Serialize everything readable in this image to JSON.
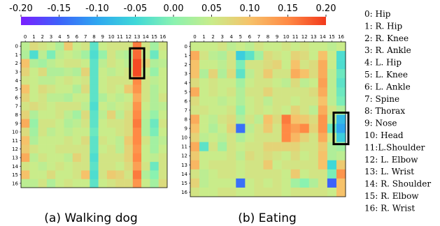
{
  "colormap": [
    "#7a1fff",
    "#3d62fa",
    "#2ea7f0",
    "#3fd8d8",
    "#8af2b0",
    "#c9ec8a",
    "#f6c26a",
    "#ff8a45",
    "#f23a1c"
  ],
  "highlight_color": "#000000",
  "chart_data": [
    {
      "type": "heatmap",
      "caption": "(a) Walking dog",
      "x": [
        "0",
        "1",
        "2",
        "3",
        "4",
        "5",
        "6",
        "7",
        "8",
        "9",
        "10",
        "11",
        "12",
        "13",
        "14",
        "15",
        "16"
      ],
      "y": [
        "0",
        "1",
        "2",
        "3",
        "4",
        "5",
        "6",
        "7",
        "8",
        "9",
        "10",
        "11",
        "12",
        "13",
        "14",
        "15",
        "16"
      ],
      "vmin": -0.2,
      "vmax": 0.2,
      "highlight": {
        "col": 13,
        "row_start": 1,
        "row_end": 3
      },
      "values": [
        [
          0.04,
          0.07,
          0.06,
          0.05,
          0.03,
          0.09,
          0.05,
          0.06,
          -0.03,
          0.05,
          0.06,
          0.06,
          0.06,
          0.16,
          0.06,
          0.02,
          0.06
        ],
        [
          0.03,
          -0.04,
          0.04,
          -0.01,
          0.04,
          0.05,
          0.04,
          0.02,
          -0.04,
          0.01,
          0.06,
          0.04,
          0.03,
          0.17,
          0.05,
          -0.02,
          0.05
        ],
        [
          0.1,
          0.03,
          0.02,
          0.04,
          0.05,
          0.06,
          0.06,
          0.05,
          -0.03,
          0.04,
          0.06,
          0.05,
          0.04,
          0.19,
          0.08,
          0.03,
          0.04
        ],
        [
          0.08,
          0.05,
          0.07,
          0.03,
          0.03,
          0.04,
          0.03,
          0.08,
          -0.03,
          0.05,
          0.04,
          0.05,
          0.06,
          0.19,
          0.05,
          0.01,
          0.05
        ],
        [
          0.06,
          0.05,
          0.04,
          0.04,
          0.05,
          0.06,
          0.05,
          0.06,
          -0.03,
          0.05,
          0.06,
          0.06,
          0.06,
          0.15,
          0.06,
          0.04,
          0.05
        ],
        [
          0.1,
          0.05,
          0.07,
          0.06,
          0.05,
          0.05,
          0.03,
          0.07,
          -0.03,
          0.05,
          0.06,
          0.05,
          0.09,
          0.14,
          0.06,
          0.03,
          0.05
        ],
        [
          0.08,
          0.05,
          0.06,
          0.04,
          0.04,
          0.03,
          0.05,
          0.05,
          -0.03,
          0.03,
          0.05,
          0.04,
          0.05,
          0.12,
          0.06,
          0.03,
          0.06
        ],
        [
          0.06,
          0.07,
          0.06,
          0.05,
          0.06,
          0.06,
          0.06,
          0.04,
          -0.04,
          0.05,
          0.04,
          0.05,
          0.06,
          0.14,
          0.05,
          0.03,
          0.04
        ],
        [
          0.08,
          0.03,
          0.05,
          0.05,
          0.06,
          0.04,
          0.02,
          0.07,
          -0.03,
          0.04,
          0.08,
          0.04,
          0.07,
          0.15,
          0.04,
          0.01,
          0.05
        ],
        [
          0.12,
          0.01,
          0.06,
          0.06,
          0.05,
          0.03,
          0.04,
          0.06,
          -0.03,
          0.05,
          0.06,
          0.06,
          0.07,
          0.16,
          0.03,
          -0.02,
          0.06
        ],
        [
          0.07,
          0.02,
          0.06,
          0.04,
          0.05,
          0.04,
          0.05,
          0.05,
          -0.02,
          0.05,
          0.05,
          0.06,
          0.07,
          0.15,
          0.03,
          -0.01,
          0.05
        ],
        [
          0.1,
          0.03,
          0.05,
          0.05,
          0.05,
          0.06,
          0.05,
          0.07,
          -0.03,
          0.06,
          0.05,
          0.04,
          0.09,
          0.15,
          0.06,
          0.02,
          0.04
        ],
        [
          0.09,
          0.06,
          0.05,
          0.05,
          0.06,
          0.06,
          0.06,
          0.06,
          -0.03,
          0.05,
          0.06,
          0.04,
          0.08,
          0.14,
          0.05,
          0.02,
          0.05
        ],
        [
          0.12,
          0.04,
          0.06,
          0.05,
          0.05,
          0.04,
          0.08,
          0.06,
          -0.04,
          0.06,
          0.06,
          0.06,
          0.08,
          0.15,
          0.05,
          0.04,
          0.06
        ],
        [
          0.06,
          0.05,
          0.04,
          0.05,
          0.06,
          0.05,
          0.06,
          0.06,
          -0.03,
          0.06,
          0.06,
          0.05,
          0.07,
          0.13,
          0.06,
          -0.02,
          0.06
        ],
        [
          0.1,
          0.05,
          0.05,
          0.07,
          0.05,
          0.05,
          0.06,
          0.1,
          -0.04,
          0.06,
          0.09,
          0.08,
          0.06,
          0.16,
          0.03,
          0.0,
          0.06
        ],
        [
          0.04,
          0.04,
          0.06,
          0.03,
          0.05,
          0.06,
          0.05,
          0.05,
          -0.03,
          0.05,
          0.06,
          0.07,
          0.07,
          0.14,
          0.05,
          0.02,
          0.07
        ]
      ]
    },
    {
      "type": "heatmap",
      "caption": "(b) Eating",
      "x": [
        "0",
        "1",
        "2",
        "3",
        "4",
        "5",
        "6",
        "7",
        "8",
        "9",
        "10",
        "11",
        "12",
        "13",
        "14",
        "15",
        "16"
      ],
      "y": [
        "0",
        "1",
        "2",
        "3",
        "4",
        "5",
        "6",
        "7",
        "8",
        "9",
        "10",
        "11",
        "12",
        "13",
        "14",
        "15",
        "16"
      ],
      "vmin": -0.2,
      "vmax": 0.2,
      "highlight": {
        "col": 16,
        "row_start": 8,
        "row_end": 10
      },
      "values": [
        [
          0.05,
          0.05,
          0.05,
          0.06,
          0.04,
          0.05,
          0.04,
          0.06,
          0.05,
          0.05,
          0.06,
          0.05,
          0.06,
          0.05,
          0.05,
          0.04,
          0.05
        ],
        [
          0.12,
          0.06,
          0.04,
          0.03,
          0.06,
          -0.06,
          -0.03,
          0.02,
          0.07,
          0.06,
          0.05,
          0.08,
          0.07,
          0.05,
          0.1,
          0.05,
          -0.04
        ],
        [
          0.1,
          0.05,
          0.05,
          0.04,
          0.06,
          -0.01,
          0.06,
          0.06,
          0.07,
          0.08,
          0.05,
          0.1,
          0.06,
          0.07,
          0.12,
          0.05,
          -0.04
        ],
        [
          0.1,
          0.03,
          0.08,
          0.03,
          0.07,
          -0.03,
          0.04,
          0.06,
          0.09,
          0.06,
          0.06,
          0.12,
          0.1,
          0.07,
          0.12,
          0.04,
          -0.02
        ],
        [
          0.07,
          0.05,
          0.06,
          0.05,
          0.05,
          0.02,
          0.05,
          0.06,
          0.06,
          0.05,
          0.04,
          0.07,
          0.04,
          0.05,
          0.13,
          0.04,
          -0.03
        ],
        [
          0.12,
          0.05,
          0.06,
          0.05,
          0.06,
          0.03,
          0.06,
          0.06,
          0.08,
          0.06,
          0.06,
          0.06,
          0.06,
          0.07,
          0.12,
          0.04,
          -0.02
        ],
        [
          0.07,
          0.05,
          0.05,
          0.04,
          0.05,
          0.03,
          0.05,
          0.06,
          0.04,
          0.06,
          0.06,
          0.05,
          0.06,
          0.06,
          0.1,
          0.04,
          -0.01
        ],
        [
          0.06,
          0.06,
          0.05,
          0.05,
          0.06,
          0.01,
          0.05,
          0.06,
          0.05,
          0.06,
          0.05,
          0.08,
          0.06,
          0.04,
          0.12,
          0.06,
          0.03
        ],
        [
          0.12,
          0.05,
          0.04,
          0.06,
          0.07,
          0.03,
          0.06,
          0.04,
          0.1,
          0.07,
          0.16,
          0.1,
          0.09,
          0.07,
          0.14,
          0.04,
          -0.08
        ],
        [
          0.1,
          0.05,
          0.03,
          0.05,
          0.08,
          -0.14,
          0.04,
          0.06,
          0.09,
          0.06,
          0.15,
          0.13,
          0.15,
          0.08,
          0.14,
          -0.02,
          -0.1
        ],
        [
          0.08,
          0.04,
          0.05,
          0.04,
          0.06,
          0.03,
          0.05,
          0.06,
          0.06,
          0.06,
          0.15,
          0.11,
          0.08,
          0.06,
          0.12,
          0.05,
          -0.06
        ],
        [
          0.12,
          -0.03,
          0.06,
          0.02,
          0.06,
          0.05,
          0.06,
          0.06,
          0.08,
          0.08,
          0.08,
          0.08,
          0.06,
          0.06,
          0.09,
          0.03,
          0.02
        ],
        [
          0.09,
          0.05,
          0.05,
          0.05,
          0.06,
          0.04,
          0.07,
          0.06,
          0.07,
          0.06,
          0.05,
          0.07,
          0.05,
          0.06,
          0.1,
          0.03,
          0.04
        ],
        [
          0.11,
          0.05,
          0.06,
          0.06,
          0.06,
          0.05,
          0.06,
          0.06,
          0.09,
          0.05,
          0.06,
          0.06,
          0.06,
          0.06,
          0.1,
          -0.05,
          0.09
        ],
        [
          0.06,
          0.04,
          0.05,
          0.06,
          0.06,
          0.05,
          0.06,
          0.06,
          0.06,
          0.06,
          0.05,
          0.09,
          0.05,
          0.06,
          0.06,
          -0.01,
          0.14
        ],
        [
          0.08,
          0.04,
          0.05,
          0.05,
          0.05,
          -0.14,
          0.05,
          0.06,
          0.05,
          0.06,
          0.05,
          0.02,
          0.0,
          0.03,
          0.06,
          -0.15,
          0.1
        ],
        [
          0.06,
          0.05,
          0.05,
          0.06,
          0.06,
          0.05,
          0.05,
          0.06,
          0.06,
          0.06,
          0.05,
          0.06,
          0.06,
          0.06,
          0.06,
          0.05,
          0.1
        ]
      ]
    }
  ],
  "colorbar": {
    "ticks": [
      "-0.20",
      "-0.15",
      "-0.10",
      "-0.05",
      "0.00",
      "0.05",
      "0.10",
      "0.15",
      "0.20"
    ],
    "tick_values": [
      -0.2,
      -0.15,
      -0.1,
      -0.05,
      0,
      0.05,
      0.1,
      0.15,
      0.2
    ]
  },
  "legend": [
    "0: Hip",
    "1: R. Hip",
    "2: R. Knee",
    "3: R. Ankle",
    "4: L. Hip",
    "5: L. Knee",
    "6: L. Ankle",
    "7: Spine",
    "8: Thorax",
    "9: Nose",
    "10: Head",
    "11:L.Shoulder",
    "12: L. Elbow",
    "13: L. Wrist",
    "14: R. Shoulder",
    "15: R. Elbow",
    "16: R. Wrist"
  ]
}
